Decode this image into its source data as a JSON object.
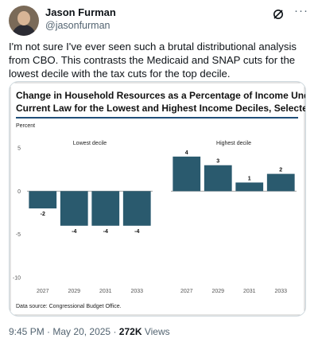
{
  "author": {
    "name": "Jason Furman",
    "handle": "@jasonfurman"
  },
  "tweet": {
    "text": "I'm not sure I've ever seen such a brutal distributional analysis from CBO. This contrasts the Medicaid and SNAP cuts for the lowest decile with the tax cuts for the top decile.",
    "time": "9:45 PM",
    "separator": "·",
    "date": "May 20, 2025",
    "views_count": "272K",
    "views_label": "Views"
  },
  "icons": {
    "grok": "grok-icon",
    "more": "more-icon"
  },
  "colors": {
    "bar": "#2a5a6e",
    "chart_border": "#1f4e79"
  },
  "chart_data": [
    {
      "type": "bar",
      "title": "Change in Household Resources as a Percentage of Income Under Current Law for the Lowest and Highest Income Deciles, Selected Years",
      "ylabel": "Percent",
      "subtitle": "Lowest decile",
      "categories": [
        "2027",
        "2029",
        "2031",
        "2033"
      ],
      "values": [
        -2,
        -4,
        -4,
        -4
      ],
      "value_labels": [
        "-2",
        "-4",
        "-4",
        "-4"
      ],
      "ylim": [
        -10,
        5
      ],
      "yticks": [
        "5",
        "0",
        "-5",
        "-10"
      ],
      "source": "Data source: Congressional Budget Office."
    },
    {
      "type": "bar",
      "subtitle": "Highest decile",
      "categories": [
        "2027",
        "2029",
        "2031",
        "2033"
      ],
      "values": [
        4,
        3,
        1,
        2
      ],
      "value_labels": [
        "4",
        "3",
        "1",
        "2"
      ],
      "ylim": [
        -10,
        5
      ]
    }
  ]
}
